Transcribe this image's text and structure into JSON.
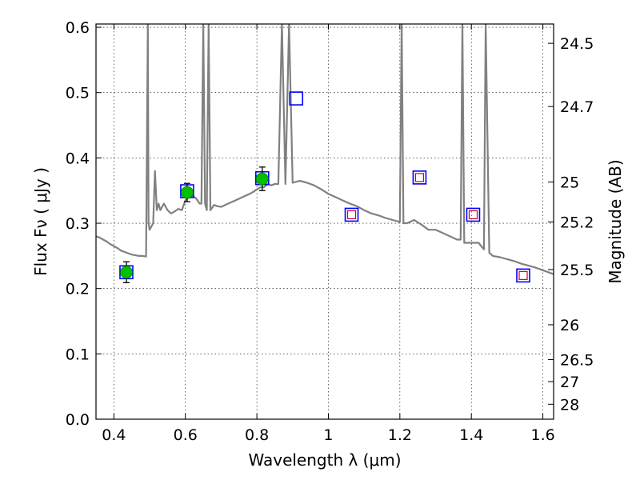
{
  "chart_data": {
    "type": "scatter",
    "xlabel": "Wavelength  λ (μm)",
    "ylabel": "Flux  Fν  ( μJy )",
    "y2label": "Magnitude (AB)",
    "xlim": [
      0.35,
      1.63
    ],
    "ylim": [
      0.0,
      0.605
    ],
    "grid": true,
    "x_ticks": [
      0.4,
      0.6,
      0.8,
      1.0,
      1.2,
      1.4,
      1.6
    ],
    "x_tick_labels": [
      "0.4",
      "0.6",
      "0.8",
      "1",
      "1.2",
      "1.4",
      "1.6"
    ],
    "y_ticks": [
      0.0,
      0.1,
      0.2,
      0.3,
      0.4,
      0.5,
      0.6
    ],
    "y_tick_labels": [
      "0.0",
      "0.1",
      "0.2",
      "0.3",
      "0.4",
      "0.5",
      "0.6"
    ],
    "mag_ticks": [
      24.5,
      24.7,
      25.0,
      25.2,
      25.5,
      26.0,
      26.5,
      27.0,
      28.0
    ],
    "mag_tick_labels": [
      "24.5",
      "24.7",
      "25",
      "25.2",
      "25.5",
      "26",
      "26.5",
      "27",
      "28"
    ],
    "series": [
      {
        "kind": "line",
        "color": "#808080",
        "x": [
          0.35,
          0.36,
          0.37,
          0.38,
          0.39,
          0.4,
          0.41,
          0.42,
          0.43,
          0.44,
          0.45,
          0.46,
          0.47,
          0.48,
          0.49,
          0.495,
          0.497,
          0.5,
          0.51,
          0.515,
          0.52,
          0.525,
          0.53,
          0.54,
          0.55,
          0.56,
          0.57,
          0.58,
          0.59,
          0.6,
          0.61,
          0.62,
          0.63,
          0.64,
          0.645,
          0.65,
          0.655,
          0.66,
          0.665,
          0.67,
          0.68,
          0.69,
          0.7,
          0.72,
          0.74,
          0.76,
          0.78,
          0.79,
          0.8,
          0.81,
          0.82,
          0.83,
          0.84,
          0.85,
          0.86,
          0.87,
          0.88,
          0.89,
          0.9,
          0.92,
          0.94,
          0.96,
          0.98,
          1.0,
          1.02,
          1.04,
          1.06,
          1.08,
          1.1,
          1.12,
          1.14,
          1.16,
          1.18,
          1.2,
          1.205,
          1.21,
          1.22,
          1.24,
          1.26,
          1.28,
          1.3,
          1.32,
          1.34,
          1.36,
          1.37,
          1.375,
          1.38,
          1.4,
          1.42,
          1.435,
          1.44,
          1.45,
          1.46,
          1.48,
          1.5,
          1.52,
          1.54,
          1.56,
          1.58,
          1.6,
          1.63
        ],
        "y": [
          0.28,
          0.278,
          0.275,
          0.272,
          0.268,
          0.265,
          0.262,
          0.258,
          0.256,
          0.254,
          0.252,
          0.251,
          0.25,
          0.25,
          0.249,
          0.605,
          0.3,
          0.29,
          0.3,
          0.38,
          0.32,
          0.33,
          0.32,
          0.33,
          0.32,
          0.315,
          0.318,
          0.322,
          0.32,
          0.335,
          0.34,
          0.342,
          0.338,
          0.33,
          0.33,
          0.605,
          0.33,
          0.32,
          0.605,
          0.32,
          0.328,
          0.326,
          0.325,
          0.33,
          0.335,
          0.34,
          0.345,
          0.348,
          0.352,
          0.355,
          0.355,
          0.36,
          0.358,
          0.36,
          0.36,
          0.605,
          0.36,
          0.605,
          0.362,
          0.365,
          0.362,
          0.358,
          0.352,
          0.345,
          0.34,
          0.335,
          0.33,
          0.326,
          0.32,
          0.315,
          0.312,
          0.308,
          0.305,
          0.302,
          0.605,
          0.3,
          0.3,
          0.305,
          0.298,
          0.29,
          0.29,
          0.285,
          0.28,
          0.275,
          0.275,
          0.605,
          0.27,
          0.27,
          0.27,
          0.26,
          0.605,
          0.255,
          0.25,
          0.248,
          0.245,
          0.242,
          0.238,
          0.235,
          0.232,
          0.228,
          0.222
        ]
      },
      {
        "name": "",
        "kind": "square-blue",
        "color": "#0000ff",
        "x": [
          0.435,
          0.605,
          0.815,
          0.91
        ],
        "y": [
          0.225,
          0.349,
          0.369,
          0.491
        ]
      },
      {
        "name": "",
        "kind": "square-red",
        "color": "#cc0033",
        "x": [
          1.065,
          1.255,
          1.405,
          1.545
        ],
        "y": [
          0.313,
          0.37,
          0.313,
          0.22
        ]
      },
      {
        "name": "",
        "kind": "circle-green",
        "color": "#00c000",
        "x": [
          0.435,
          0.605,
          0.815
        ],
        "y": [
          0.225,
          0.347,
          0.368
        ],
        "yerr": [
          0.016,
          0.014,
          0.018
        ]
      }
    ]
  }
}
